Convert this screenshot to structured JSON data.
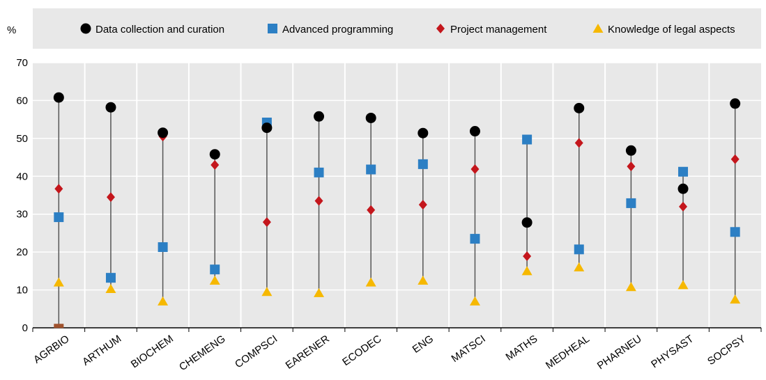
{
  "chart_data": {
    "type": "scatter",
    "unit_label": "%",
    "title": "",
    "xlabel": "",
    "ylabel": "",
    "ylim": [
      0,
      70
    ],
    "yticks": [
      0,
      10,
      20,
      30,
      40,
      50,
      60,
      70
    ],
    "grid": true,
    "legend_position": "top",
    "categories": [
      "AGRBIO",
      "ARTHUM",
      "BIOCHEM",
      "CHEMENG",
      "COMPSCI",
      "EARENER",
      "ECODEC",
      "ENG",
      "MATSCI",
      "MATHS",
      "MEDHEAL",
      "PHARNEU",
      "PHYSAST",
      "SOCPSY"
    ],
    "series": [
      {
        "name": "Data collection and curation",
        "marker": "circle",
        "color": "#000000",
        "values": [
          60.8,
          58.2,
          51.5,
          45.8,
          52.8,
          55.8,
          55.4,
          51.4,
          51.9,
          27.8,
          58.0,
          46.8,
          36.7,
          59.2
        ]
      },
      {
        "name": "Advanced programming",
        "marker": "square",
        "color": "#2c7fc4",
        "values": [
          29.2,
          13.2,
          21.3,
          15.4,
          54.2,
          41.0,
          41.8,
          43.2,
          23.5,
          49.7,
          20.7,
          32.9,
          41.2,
          25.3
        ]
      },
      {
        "name": "Project management",
        "marker": "diamond",
        "color": "#c4161c",
        "values": [
          36.7,
          34.5,
          50.5,
          43.0,
          27.9,
          33.5,
          31.1,
          32.5,
          41.9,
          18.9,
          48.8,
          42.6,
          32.0,
          44.5
        ]
      },
      {
        "name": "Knowledge of legal aspects",
        "marker": "triangle",
        "color": "#f6b800",
        "values": [
          12.0,
          10.3,
          7.0,
          12.5,
          9.5,
          9.2,
          12.0,
          12.5,
          7.0,
          15.0,
          16.0,
          10.8,
          11.3,
          7.5
        ]
      }
    ],
    "range_line_color": "#555555",
    "gridline_color": "#ffffff",
    "band_colors": [
      "#e8e8e8",
      "#e8e8e8"
    ],
    "legend_background": "#e8e8e8",
    "extra_marker": {
      "category": "AGRBIO",
      "value": 0.5,
      "color": "#a0522d"
    }
  }
}
